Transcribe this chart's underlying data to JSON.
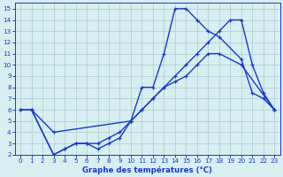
{
  "title": "Graphe des températures (°C)",
  "bg_color": "#d8eef0",
  "grid_color": "#aacccc",
  "line_color": "#1a3acc",
  "xlim": [
    -0.5,
    23.5
  ],
  "ylim": [
    2,
    15.5
  ],
  "xticks": [
    0,
    1,
    2,
    3,
    4,
    5,
    6,
    7,
    8,
    9,
    10,
    11,
    12,
    13,
    14,
    15,
    16,
    17,
    18,
    19,
    20,
    21,
    22,
    23
  ],
  "yticks": [
    2,
    3,
    4,
    5,
    6,
    7,
    8,
    9,
    10,
    11,
    12,
    13,
    14,
    15
  ],
  "line1_x": [
    0,
    1,
    3,
    10,
    11,
    12,
    13,
    14,
    15,
    16,
    17,
    18,
    20,
    21,
    22,
    23
  ],
  "line1_y": [
    6,
    6,
    4,
    5,
    8,
    8,
    11,
    15,
    15,
    14,
    13,
    12.5,
    10.5,
    7.5,
    7,
    6
  ],
  "line2_x": [
    0,
    1,
    3,
    4,
    5,
    6,
    7,
    8,
    9,
    10,
    11,
    12,
    13,
    14,
    15,
    16,
    17,
    18,
    20,
    23
  ],
  "line2_y": [
    6,
    6,
    2,
    2.5,
    3,
    3,
    2.5,
    3,
    3.5,
    5,
    6,
    7,
    8,
    8.5,
    9,
    10,
    11,
    11,
    10,
    6
  ],
  "line3_x": [
    1,
    3,
    4,
    5,
    6,
    7,
    8,
    9,
    10,
    11,
    12,
    13,
    14,
    15,
    16,
    17,
    18,
    19,
    20,
    21,
    22,
    23
  ],
  "line3_y": [
    6,
    2,
    2.5,
    3,
    3,
    3,
    3.5,
    4,
    5,
    6,
    7,
    8,
    9,
    10,
    11,
    12,
    13,
    14,
    14,
    10,
    7.5,
    6
  ]
}
